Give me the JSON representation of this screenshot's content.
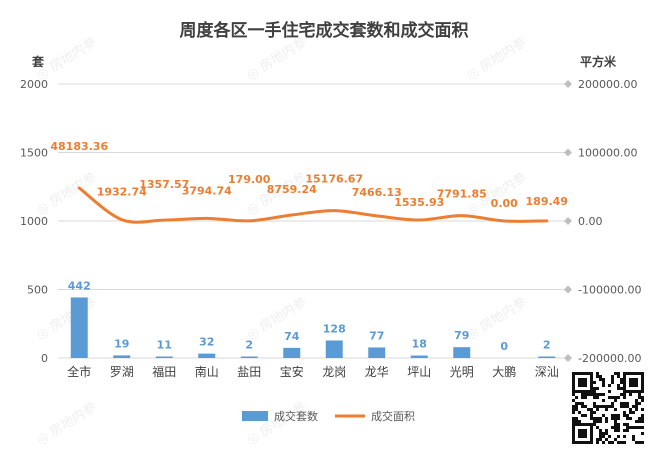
{
  "chart_data": {
    "type": "bar",
    "title": "周度各区一手住宅成交套数和成交面积",
    "y_left_label": "套",
    "y_right_label": "平方米",
    "categories": [
      "全市",
      "罗湖",
      "福田",
      "南山",
      "盐田",
      "宝安",
      "龙岗",
      "龙华",
      "坪山",
      "光明",
      "大鹏",
      "深汕"
    ],
    "left_axis": {
      "min": 0,
      "max": 2000,
      "ticks": [
        0,
        500,
        1000,
        1500,
        2000
      ],
      "tick_labels": [
        "0",
        "500",
        "1000",
        "1500",
        "2000"
      ]
    },
    "right_axis": {
      "min": -200000,
      "max": 200000,
      "ticks": [
        -200000,
        -100000,
        0,
        100000,
        200000
      ],
      "tick_labels": [
        "-200000.00",
        "-100000.00",
        "0.00",
        "100000.00",
        "200000.00"
      ]
    },
    "series": [
      {
        "name": "成交套数",
        "type": "bar",
        "axis": "left",
        "color": "#5b9bd5",
        "values": [
          442,
          19,
          11,
          32,
          2,
          74,
          128,
          77,
          18,
          79,
          0,
          2
        ],
        "labels": [
          "442",
          "19",
          "11",
          "32",
          "2",
          "74",
          "128",
          "77",
          "18",
          "79",
          "0",
          "2"
        ]
      },
      {
        "name": "成交面积",
        "type": "line",
        "axis": "right",
        "color": "#ed7d31",
        "values": [
          48183.36,
          1932.74,
          1357.57,
          3794.74,
          179.0,
          8759.24,
          15176.67,
          7466.13,
          1535.93,
          7791.85,
          0.0,
          189.49
        ],
        "labels": [
          "48183.36",
          "1932.74",
          "1357.57",
          "3794.74",
          "179.00",
          "8759.24",
          "15176.67",
          "7466.13",
          "1535.93",
          "7791.85",
          "0.00",
          "189.49"
        ]
      }
    ],
    "grid": true,
    "legend_position": "bottom",
    "watermark": "房地内参"
  }
}
